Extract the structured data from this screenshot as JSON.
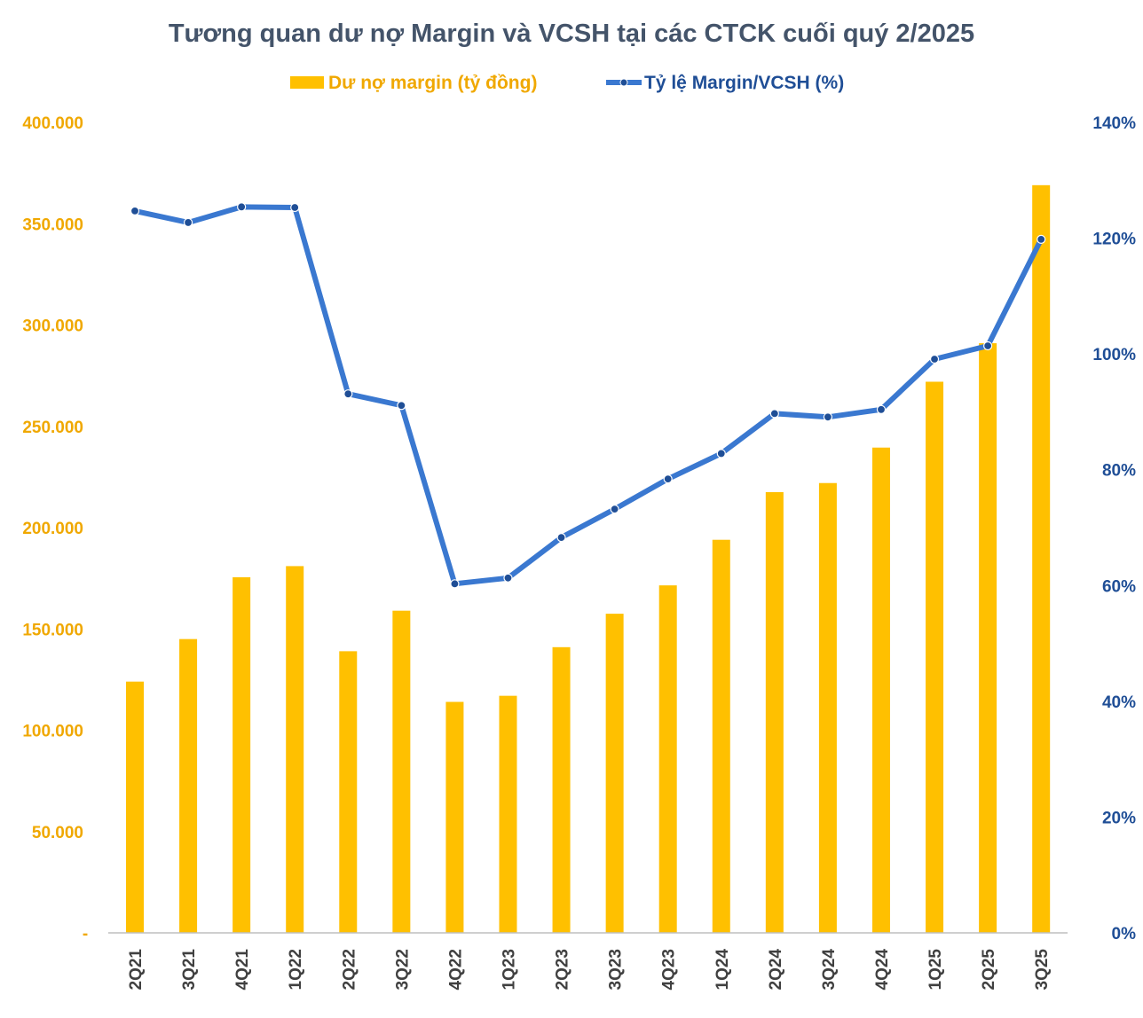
{
  "chart_data": {
    "type": "bar+line",
    "title": "Tương quan dư nợ Margin và VCSH tại các CTCK cuối quý 2/2025",
    "categories": [
      "2Q21",
      "3Q21",
      "4Q21",
      "1Q22",
      "2Q22",
      "3Q22",
      "4Q22",
      "1Q23",
      "2Q23",
      "3Q23",
      "4Q23",
      "1Q24",
      "2Q24",
      "3Q24",
      "4Q24",
      "1Q25",
      "2Q25",
      "3Q25"
    ],
    "series": [
      {
        "name": "Dư nợ margin (tỷ đồng)",
        "type": "bar",
        "axis": "left",
        "color": "#ffc000",
        "values": [
          124000,
          145000,
          175500,
          181000,
          139000,
          159000,
          114000,
          117000,
          141000,
          157500,
          171500,
          194000,
          217500,
          222000,
          239500,
          272000,
          291000,
          369000
        ]
      },
      {
        "name": "Tỷ lệ Margin/VCSH (%)",
        "type": "line",
        "axis": "right",
        "color": "#3a78d0",
        "marker_color": "#1f4e96",
        "values": [
          124.7,
          122.7,
          125.4,
          125.3,
          93.1,
          91.1,
          60.3,
          61.3,
          68.3,
          73.2,
          78.4,
          82.8,
          89.7,
          89.1,
          90.4,
          99.1,
          101.4,
          119.8
        ]
      }
    ],
    "y_left": {
      "range": [
        0,
        400000
      ],
      "ticks": [
        "-",
        "50.000",
        "100.000",
        "150.000",
        "200.000",
        "250.000",
        "300.000",
        "350.000",
        "400.000"
      ]
    },
    "y_right": {
      "range": [
        0,
        140
      ],
      "ticks": [
        "0%",
        "20%",
        "40%",
        "60%",
        "80%",
        "100%",
        "120%",
        "140%"
      ]
    },
    "legend_position": "top",
    "grid": false
  }
}
